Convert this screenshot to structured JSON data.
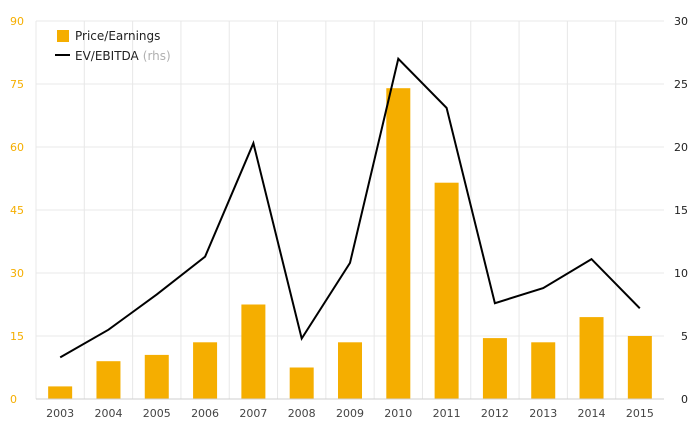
{
  "chart_data": {
    "type": "bar+line",
    "categories": [
      "2003",
      "2004",
      "2005",
      "2006",
      "2007",
      "2008",
      "2009",
      "2010",
      "2011",
      "2012",
      "2013",
      "2014",
      "2015"
    ],
    "series": [
      {
        "name": "Price/Earnings",
        "type": "bar",
        "axis": "left",
        "color": "#f5ae00",
        "values": [
          3,
          9,
          10.5,
          13.5,
          22.5,
          7.5,
          13.5,
          74,
          51.5,
          14.5,
          13.5,
          19.5,
          15
        ]
      },
      {
        "name": "EV/EBITDA",
        "name_suffix": "(rhs)",
        "type": "line",
        "axis": "right",
        "color": "#000000",
        "values": [
          3.3,
          5.5,
          8.3,
          11.3,
          20.3,
          4.8,
          10.8,
          27,
          23.1,
          7.6,
          8.8,
          11.1,
          7.2
        ]
      }
    ],
    "y_left": {
      "lim": [
        0,
        90
      ],
      "ticks": [
        "0",
        "15",
        "30",
        "45",
        "60",
        "75",
        "90"
      ]
    },
    "y_right": {
      "lim": [
        0,
        30
      ],
      "ticks": [
        "0",
        "5",
        "10",
        "15",
        "20",
        "25",
        "30"
      ]
    },
    "grid": true,
    "legend": "top-left"
  }
}
